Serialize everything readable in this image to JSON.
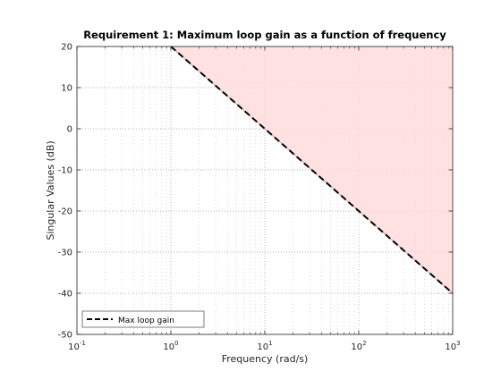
{
  "chart_data": {
    "type": "line",
    "title": "Requirement 1: Maximum loop gain as a function of frequency",
    "xlabel": "Frequency (rad/s)",
    "ylabel": "Singular Values (dB)",
    "x_scale": "log",
    "xlim": [
      0.1,
      1000
    ],
    "ylim": [
      -50,
      20
    ],
    "x_ticks": [
      {
        "value": 0.1,
        "base": "10",
        "exp": "-1"
      },
      {
        "value": 1,
        "base": "10",
        "exp": "0"
      },
      {
        "value": 10,
        "base": "10",
        "exp": "1"
      },
      {
        "value": 100,
        "base": "10",
        "exp": "2"
      },
      {
        "value": 1000,
        "base": "10",
        "exp": "3"
      }
    ],
    "y_ticks": [
      20,
      10,
      0,
      -10,
      -20,
      -30,
      -40,
      -50
    ],
    "y_tick_labels": [
      "20",
      "10",
      "0",
      "-10",
      "-20",
      "-30",
      "-40",
      "-50"
    ],
    "grid": true,
    "minor_grid": true,
    "legend_position": "bottom-left",
    "series": [
      {
        "name": "Max loop gain",
        "style": "dashed",
        "color": "#000000",
        "x": [
          1,
          1000
        ],
        "y": [
          20,
          -40
        ]
      }
    ],
    "shaded_region": {
      "description_color": "#ffdcdc",
      "edge_color": "#f0a0a0",
      "side": "above",
      "x": [
        1,
        1000
      ],
      "y": [
        20,
        -40
      ]
    }
  }
}
